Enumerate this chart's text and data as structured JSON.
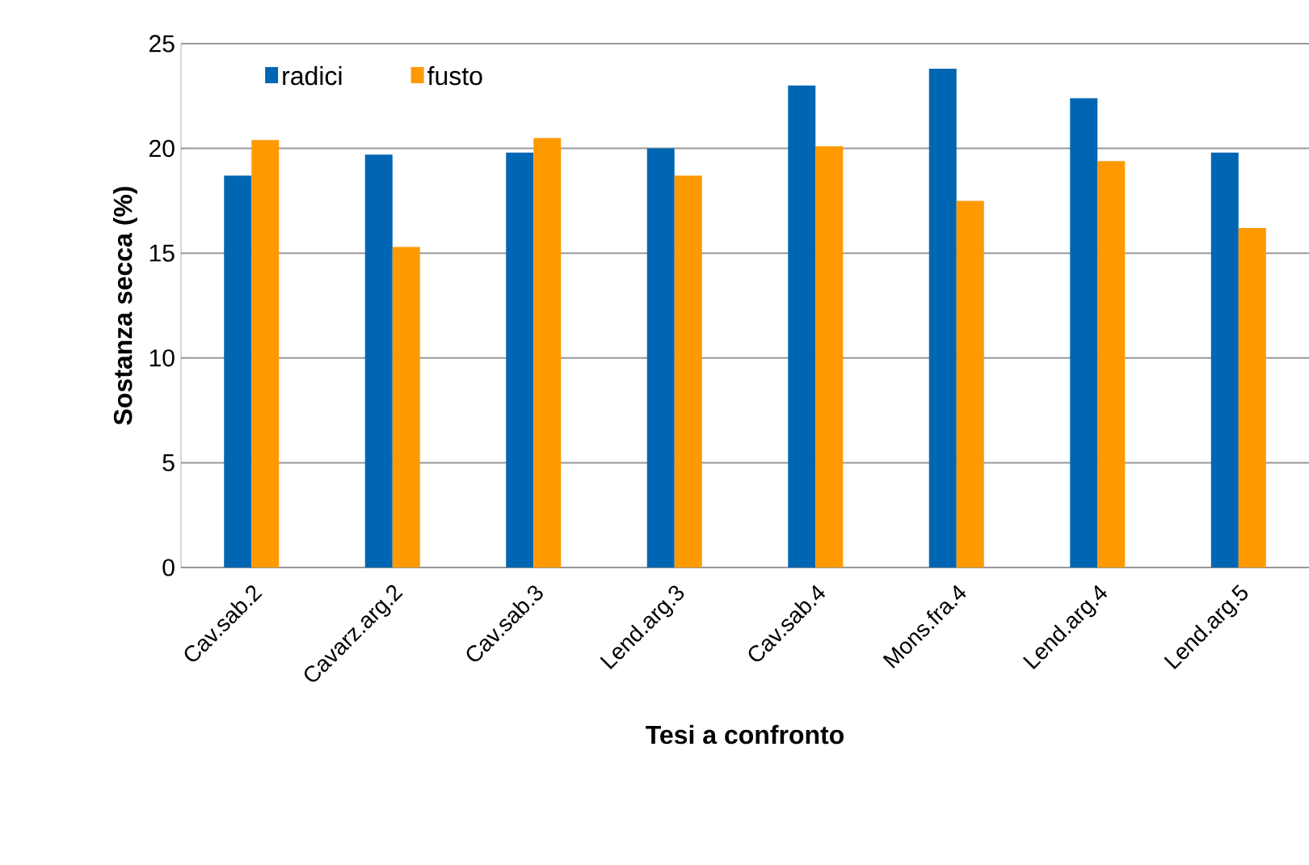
{
  "chart_data": {
    "type": "bar",
    "xlabel": "Tesi a confronto",
    "ylabel": "Sostanza secca (%)",
    "categories": [
      "Cav.sab.2",
      "Cavarz.arg.2",
      "Cav.sab.3",
      "Lend.arg.3",
      "Cav.sab.4",
      "Mons.fra.4",
      "Lend.arg.4",
      "Lend.arg.5"
    ],
    "series": [
      {
        "name": "radici",
        "color": "#0066b3",
        "values": [
          18.7,
          19.7,
          19.8,
          20.0,
          23.0,
          23.8,
          22.4,
          19.8
        ]
      },
      {
        "name": "fusto",
        "color": "#ff9900",
        "values": [
          20.4,
          15.3,
          20.5,
          18.7,
          20.1,
          17.5,
          19.4,
          16.2
        ]
      }
    ],
    "ylim": [
      0,
      25
    ],
    "yticks": [
      0,
      5,
      10,
      15,
      20,
      25
    ],
    "grid": "y",
    "legend": "top left"
  }
}
